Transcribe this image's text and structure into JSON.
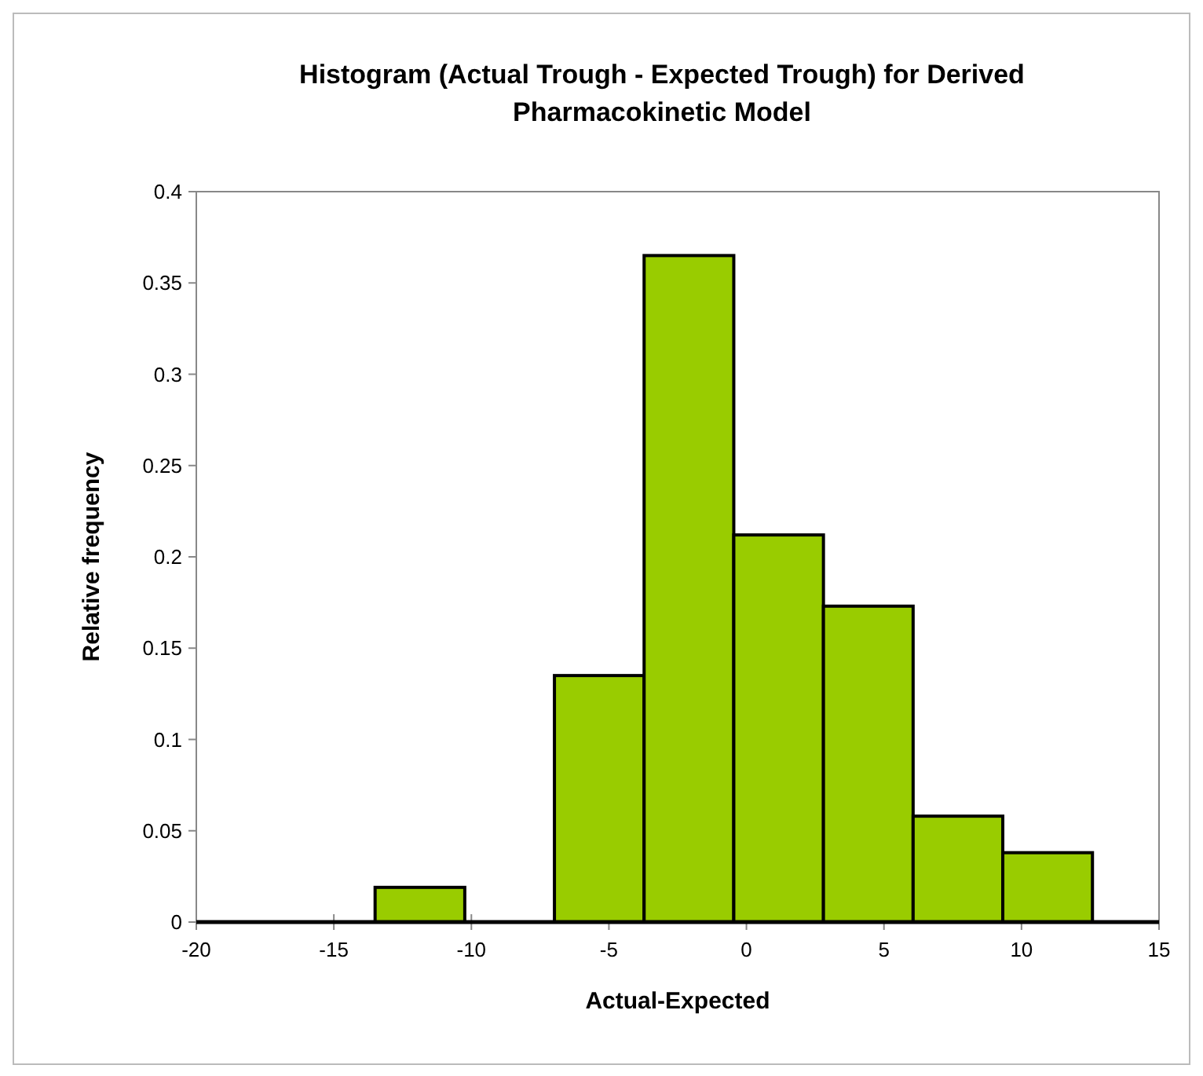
{
  "chart_data": {
    "type": "histogram",
    "title": "Histogram (Actual Trough - Expected Trough) for Derived Pharmacokinetic Model",
    "xlabel": "Actual-Expected",
    "ylabel": "Relative frequency",
    "bins": [
      -13.5,
      -10.24,
      -6.98,
      -3.72,
      -0.46,
      2.8,
      6.06,
      9.32,
      12.58
    ],
    "values": [
      0.019,
      0,
      0.135,
      0.365,
      0.212,
      0.173,
      0.058,
      0.038
    ],
    "color": "#99cc00",
    "xlim": [
      -20,
      15
    ],
    "xticks": [
      -20,
      -15,
      -10,
      -5,
      0,
      5,
      10,
      15
    ],
    "ylim": [
      0,
      0.4
    ],
    "yticks": [
      0,
      0.05,
      0.1,
      0.15,
      0.2,
      0.25,
      0.3,
      0.35,
      0.4
    ],
    "grid": false
  }
}
